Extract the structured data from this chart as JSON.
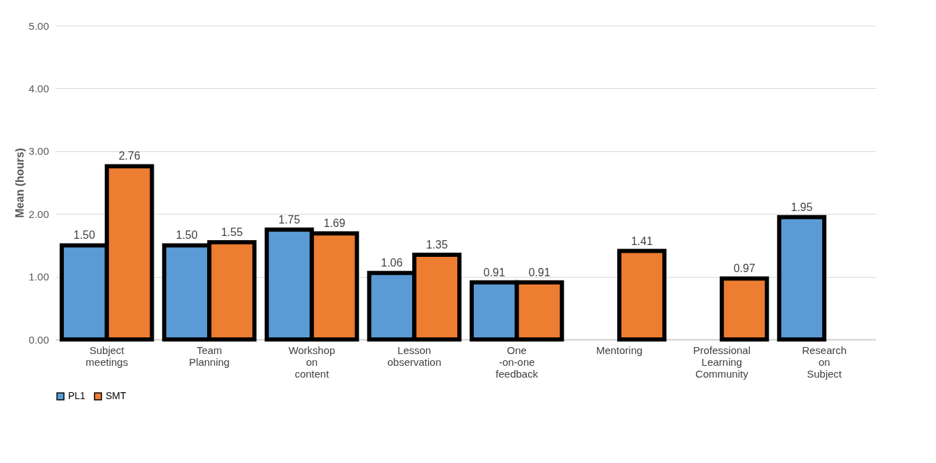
{
  "chart_data": {
    "type": "bar",
    "ylabel": "Mean (hours)",
    "categories": [
      "Subject meetings",
      "Team Planning",
      "Workshop on content",
      "Lesson observation",
      "One -on-one feedback",
      "Mentoring",
      "Professional Learning Community",
      "Research on Subject"
    ],
    "series": [
      {
        "name": "PL1",
        "color": "#5b9bd5",
        "values": [
          1.5,
          1.5,
          1.75,
          1.06,
          0.91,
          null,
          null,
          1.95
        ],
        "value_labels": [
          "1.50",
          "1.50",
          "1.75",
          "1.06",
          "0.91",
          null,
          null,
          "1.95"
        ]
      },
      {
        "name": "SMT",
        "color": "#ed7d31",
        "values": [
          2.76,
          1.55,
          1.69,
          1.35,
          0.91,
          1.41,
          0.97,
          null
        ],
        "value_labels": [
          "2.76",
          "1.55",
          "1.69",
          "1.35",
          "0.91",
          "1.41",
          "0.97",
          null
        ]
      }
    ],
    "ylim": [
      0,
      5
    ],
    "yticks": [
      {
        "value": 0,
        "label": "0.00"
      },
      {
        "value": 1,
        "label": "1.00"
      },
      {
        "value": 2,
        "label": "2.00"
      },
      {
        "value": 3,
        "label": "3.00"
      },
      {
        "value": 4,
        "label": "4.00"
      },
      {
        "value": 5,
        "label": "5.00"
      }
    ],
    "grid": "y",
    "legend": "bottom"
  }
}
